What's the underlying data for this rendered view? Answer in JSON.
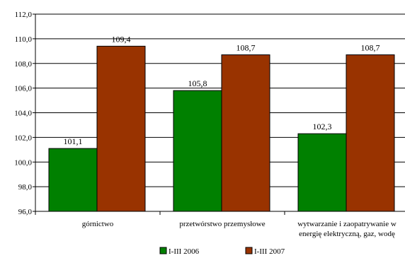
{
  "chart_data": {
    "type": "bar",
    "title": "",
    "xlabel": "",
    "ylabel": "",
    "ylim": [
      96.0,
      112.0
    ],
    "ytick_step": 2.0,
    "ytick_labels": [
      "96,0",
      "98,0",
      "100,0",
      "102,0",
      "104,0",
      "106,0",
      "108,0",
      "110,0",
      "112,0"
    ],
    "grid": true,
    "legend_position": "bottom",
    "category_labels": [
      [
        "górnictwo"
      ],
      [
        "przetwórstwo przemysłowe"
      ],
      [
        "wytwarzanie i zaopatrywanie w",
        "energię elektryczną, gaz, wodę"
      ]
    ],
    "categories": [
      "górnictwo",
      "przetwórstwo przemysłowe",
      "wytwarzanie i zaopatrywanie w energię elektryczną, gaz, wodę"
    ],
    "series": [
      {
        "name": "I-III 2006",
        "color": "#008000",
        "values": [
          101.1,
          105.8,
          102.3
        ],
        "value_labels": [
          "101,1",
          "105,8",
          "102,3"
        ]
      },
      {
        "name": "I-III 2007",
        "color": "#993300",
        "values": [
          109.4,
          108.7,
          108.7
        ],
        "value_labels": [
          "109,4",
          "108,7",
          "108,7"
        ]
      }
    ]
  }
}
